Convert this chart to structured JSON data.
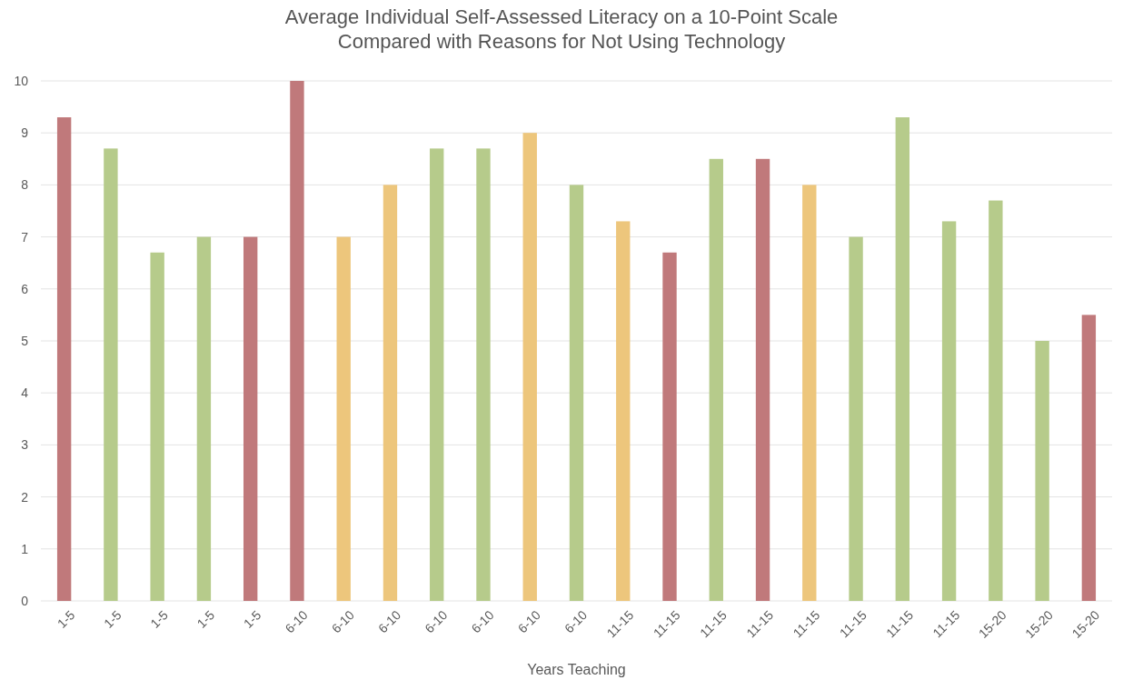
{
  "chart_data": {
    "type": "bar",
    "title": "Average Individual Self-Assessed Literacy on a 10-Point Scale\nCompared with Reasons for Not Using Technology",
    "xlabel": "Years Teaching",
    "categories": [
      "1-5",
      "1-5",
      "1-5",
      "1-5",
      "1-5",
      "6-10",
      "6-10",
      "6-10",
      "6-10",
      "6-10",
      "6-10",
      "6-10",
      "11-15",
      "11-15",
      "11-15",
      "11-15",
      "11-15",
      "11-15",
      "11-15",
      "11-15",
      "15-20",
      "15-20",
      "15-20"
    ],
    "values": [
      9.3,
      8.7,
      6.7,
      7,
      7,
      10,
      7,
      8,
      8.7,
      8.7,
      9,
      8,
      7.3,
      6.7,
      8.5,
      8.5,
      8,
      7,
      9.3,
      7.3,
      7.7,
      5,
      5.5
    ],
    "colors": [
      "#c0797b",
      "#b6cb8b",
      "#b6cb8b",
      "#b6cb8b",
      "#c0797b",
      "#c0797b",
      "#edc67c",
      "#edc67c",
      "#b6cb8b",
      "#b6cb8b",
      "#edc67c",
      "#b6cb8b",
      "#edc67c",
      "#c0797b",
      "#b6cb8b",
      "#c0797b",
      "#edc67c",
      "#b6cb8b",
      "#b6cb8b",
      "#b6cb8b",
      "#b6cb8b",
      "#b6cb8b",
      "#c0797b"
    ],
    "ylim": [
      0,
      10
    ],
    "yticks": [
      0,
      1,
      2,
      3,
      4,
      5,
      6,
      7,
      8,
      9,
      10
    ],
    "grid": "y"
  }
}
